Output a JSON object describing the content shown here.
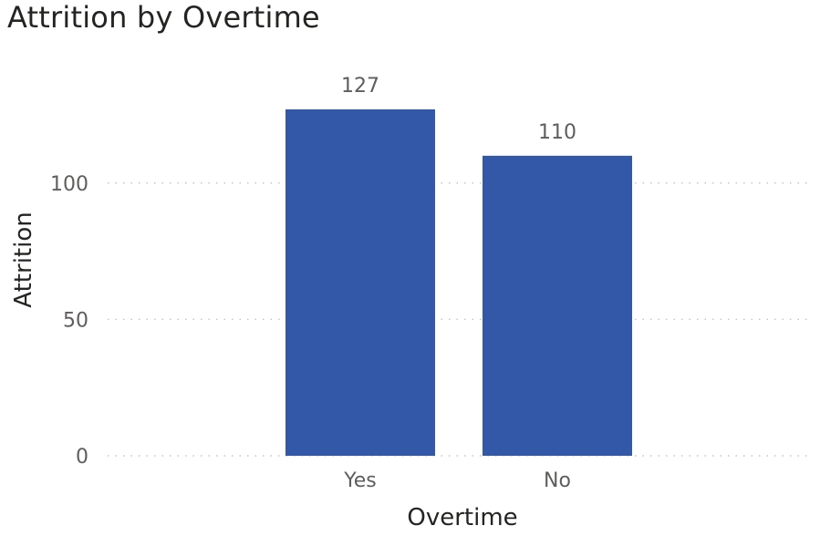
{
  "chart_data": {
    "type": "bar",
    "title": "Attrition by Overtime",
    "xlabel": "Overtime",
    "ylabel": "Attrition",
    "categories": [
      "Yes",
      "No"
    ],
    "values": [
      127,
      110
    ],
    "data_labels": [
      "127",
      "110"
    ],
    "yticks": [
      0,
      50,
      100
    ],
    "ytick_labels": [
      "0",
      "50",
      "100"
    ],
    "ylim": [
      0,
      127
    ],
    "grid": true,
    "legend": "none",
    "bar_color": "#3358a8"
  }
}
